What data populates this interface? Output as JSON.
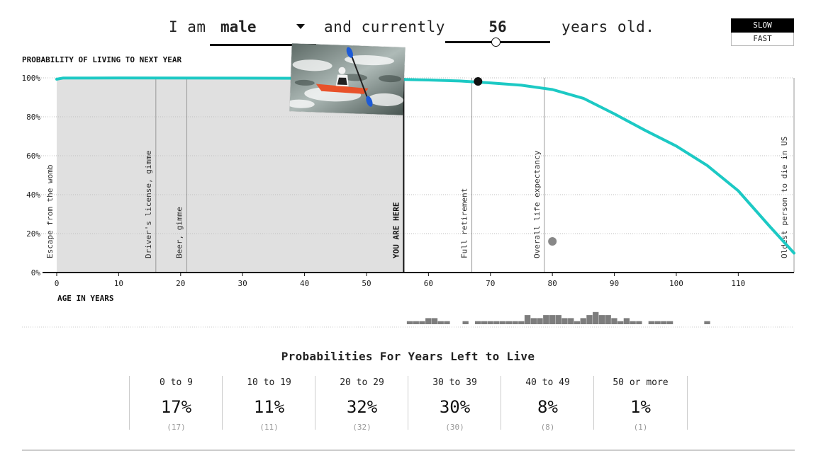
{
  "controls": {
    "prefix": "I am",
    "sex_value": "male",
    "middle": "and currently",
    "age_value": "56",
    "suffix": "years old.",
    "age_slider": {
      "min": 0,
      "max": 118,
      "value": 56
    },
    "speed_options": [
      "SLOW",
      "FAST"
    ],
    "speed_selected": "SLOW"
  },
  "chart_data": {
    "type": "line",
    "ylabel": "PROBABILITY OF LIVING TO NEXT YEAR",
    "xlabel": "AGE IN YEARS",
    "xlim": [
      0,
      119
    ],
    "ylim": [
      0,
      100
    ],
    "x_ticks": [
      0,
      10,
      20,
      30,
      40,
      50,
      60,
      70,
      80,
      90,
      100,
      110
    ],
    "y_ticks": [
      {
        "value": 0,
        "label": "0%"
      },
      {
        "value": 20,
        "label": "20%"
      },
      {
        "value": 40,
        "label": "40%"
      },
      {
        "value": 60,
        "label": "60%"
      },
      {
        "value": 80,
        "label": "80%"
      },
      {
        "value": 100,
        "label": "100%"
      }
    ],
    "grid": true,
    "series": [
      {
        "color": "#1cc9c4",
        "points": [
          [
            0,
            99.3
          ],
          [
            1,
            99.9
          ],
          [
            10,
            99.98
          ],
          [
            20,
            99.9
          ],
          [
            30,
            99.85
          ],
          [
            40,
            99.8
          ],
          [
            50,
            99.6
          ],
          [
            56,
            99.2
          ],
          [
            60,
            98.9
          ],
          [
            65,
            98.4
          ],
          [
            70,
            97.4
          ],
          [
            75,
            96.2
          ],
          [
            80,
            94.0
          ],
          [
            85,
            89.5
          ],
          [
            90,
            81.5
          ],
          [
            95,
            73.0
          ],
          [
            100,
            65.0
          ],
          [
            105,
            55.0
          ],
          [
            110,
            42.0
          ],
          [
            115,
            24.0
          ],
          [
            119,
            10.0
          ]
        ]
      }
    ],
    "current_age": 56,
    "current_label": "YOU ARE HERE",
    "milestones": [
      {
        "age": 0,
        "label": "Escape from the womb"
      },
      {
        "age": 16,
        "label": "Driver's license, gimme"
      },
      {
        "age": 21,
        "label": "Beer, gimme"
      },
      {
        "age": 67,
        "label": "Full retirement"
      },
      {
        "age": 78.7,
        "label": "Overall life expectancy"
      },
      {
        "age": 119,
        "label": "Oldest person to die in US"
      }
    ],
    "simulation_markers": [
      {
        "age": 68,
        "probability": 98.2,
        "color": "#111111"
      },
      {
        "age": 80,
        "probability": 16.0,
        "color": "#888888"
      }
    ],
    "death_histogram": {
      "ages": [
        57,
        58,
        59,
        60,
        61,
        62,
        63,
        64,
        65,
        66,
        67,
        68,
        69,
        70,
        71,
        72,
        73,
        74,
        75,
        76,
        77,
        78,
        79,
        80,
        81,
        82,
        83,
        84,
        85,
        86,
        87,
        88,
        89,
        90,
        91,
        92,
        93,
        94,
        95,
        96,
        97,
        98,
        99,
        100,
        101,
        102,
        103,
        104,
        105
      ],
      "counts": [
        1,
        1,
        1,
        2,
        2,
        1,
        1,
        0,
        0,
        1,
        0,
        1,
        1,
        1,
        1,
        1,
        1,
        1,
        1,
        3,
        2,
        2,
        3,
        3,
        3,
        2,
        2,
        1,
        2,
        3,
        4,
        3,
        3,
        2,
        1,
        2,
        1,
        1,
        0,
        1,
        1,
        1,
        1,
        0,
        0,
        0,
        0,
        0,
        1
      ]
    }
  },
  "summary": {
    "title": "Probabilities For Years Left to Live",
    "bins": [
      {
        "label": "0 to 9",
        "pct": "17%",
        "count": "(17)"
      },
      {
        "label": "10 to 19",
        "pct": "11%",
        "count": "(11)"
      },
      {
        "label": "20 to 29",
        "pct": "32%",
        "count": "(32)"
      },
      {
        "label": "30 to 39",
        "pct": "30%",
        "count": "(30)"
      },
      {
        "label": "40 to 49",
        "pct": "8%",
        "count": "(8)"
      },
      {
        "label": "50 or more",
        "pct": "1%",
        "count": "(1)"
      }
    ]
  },
  "photo": {
    "icon": "kayaker-photo"
  }
}
